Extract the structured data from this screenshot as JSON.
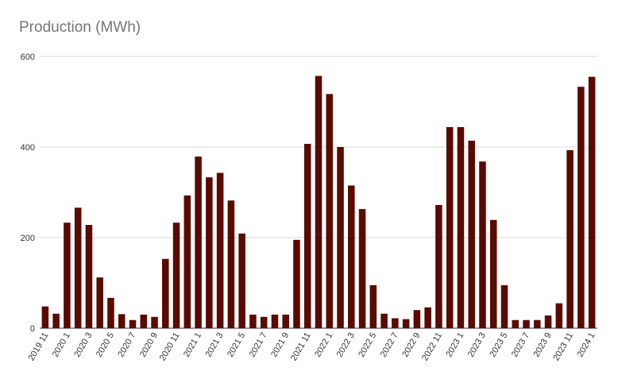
{
  "chart_data": {
    "type": "bar",
    "title": "Production (MWh)",
    "xlabel": "",
    "ylabel": "",
    "ylim": [
      0,
      600
    ],
    "yticks": [
      0,
      200,
      400,
      600
    ],
    "grid": true,
    "bar_color": "#5a0a00",
    "categories": [
      "2019 11",
      "2019 12",
      "2020 1",
      "2020 2",
      "2020 3",
      "2020 4",
      "2020 5",
      "2020 6",
      "2020 7",
      "2020 8",
      "2020 9",
      "2020 10",
      "2020 11",
      "2020 12",
      "2021 1",
      "2021 2",
      "2021 3",
      "2021 4",
      "2021 5",
      "2021 6",
      "2021 7",
      "2021 8",
      "2021 9",
      "2021 10",
      "2021 11",
      "2021 12",
      "2022 1",
      "2022 2",
      "2022 3",
      "2022 4",
      "2022 5",
      "2022 6",
      "2022 7",
      "2022 8",
      "2022 9",
      "2022 10",
      "2022 11",
      "2022 12",
      "2023 1",
      "2023 2",
      "2023 3",
      "2023 4",
      "2023 5",
      "2023 6",
      "2023 7",
      "2023 8",
      "2023 9",
      "2023 10",
      "2023 11",
      "2023 12",
      "2024 1"
    ],
    "xtick_labels": [
      "2019 11",
      "",
      "2020 1",
      "",
      "2020 3",
      "",
      "2020 5",
      "",
      "2020 7",
      "",
      "2020 9",
      "",
      "2020 11",
      "",
      "2021 1",
      "",
      "2021 3",
      "",
      "2021 5",
      "",
      "2021 7",
      "",
      "2021 9",
      "",
      "2021 11",
      "",
      "2022 1",
      "",
      "2022 3",
      "",
      "2022 5",
      "",
      "2022 7",
      "",
      "2022 9",
      "",
      "2022 11",
      "",
      "2023 1",
      "",
      "2023 3",
      "",
      "2023 5",
      "",
      "2023 7",
      "",
      "2023 9",
      "",
      "2023 11",
      "",
      "2024 1"
    ],
    "values": [
      48,
      32,
      233,
      266,
      228,
      112,
      67,
      31,
      18,
      30,
      25,
      153,
      233,
      293,
      379,
      333,
      343,
      282,
      209,
      30,
      25,
      30,
      30,
      195,
      407,
      557,
      517,
      400,
      315,
      263,
      95,
      32,
      22,
      20,
      40,
      46,
      272,
      444,
      444,
      414,
      368,
      239,
      95,
      18,
      18,
      18,
      28,
      55,
      393,
      533,
      555
    ]
  }
}
